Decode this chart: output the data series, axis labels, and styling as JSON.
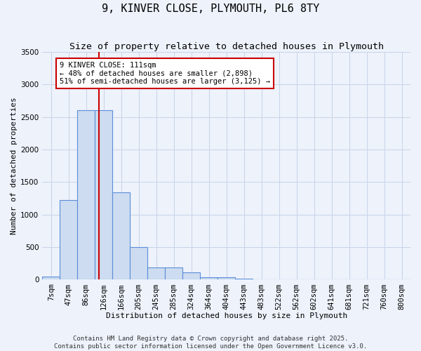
{
  "title": "9, KINVER CLOSE, PLYMOUTH, PL6 8TY",
  "subtitle": "Size of property relative to detached houses in Plymouth",
  "xlabel": "Distribution of detached houses by size in Plymouth",
  "ylabel": "Number of detached properties",
  "bar_labels": [
    "7sqm",
    "47sqm",
    "86sqm",
    "126sqm",
    "166sqm",
    "205sqm",
    "245sqm",
    "285sqm",
    "324sqm",
    "364sqm",
    "404sqm",
    "443sqm",
    "483sqm",
    "522sqm",
    "562sqm",
    "602sqm",
    "641sqm",
    "681sqm",
    "721sqm",
    "760sqm",
    "800sqm"
  ],
  "bar_values": [
    50,
    1230,
    2610,
    2610,
    1340,
    500,
    190,
    190,
    110,
    40,
    40,
    20,
    5,
    5,
    5,
    5,
    5,
    5,
    5,
    5,
    5
  ],
  "bar_color": "#cddcf0",
  "bar_edge_color": "#5b8dd9",
  "grid_color": "#c8d4e8",
  "background_color": "#edf2fb",
  "vline_color": "#cc0000",
  "vline_x": 2.72,
  "annotation_text": "9 KINVER CLOSE: 111sqm\n← 48% of detached houses are smaller (2,898)\n51% of semi-detached houses are larger (3,125) →",
  "annotation_box_color": "#ffffff",
  "annotation_box_edge_color": "#cc0000",
  "ylim": [
    0,
    3500
  ],
  "yticks": [
    0,
    500,
    1000,
    1500,
    2000,
    2500,
    3000,
    3500
  ],
  "footer_line1": "Contains HM Land Registry data © Crown copyright and database right 2025.",
  "footer_line2": "Contains public sector information licensed under the Open Government Licence v3.0.",
  "title_fontsize": 11,
  "subtitle_fontsize": 9.5,
  "axis_label_fontsize": 8,
  "tick_fontsize": 7.5,
  "annotation_fontsize": 7.5,
  "footer_fontsize": 6.5
}
